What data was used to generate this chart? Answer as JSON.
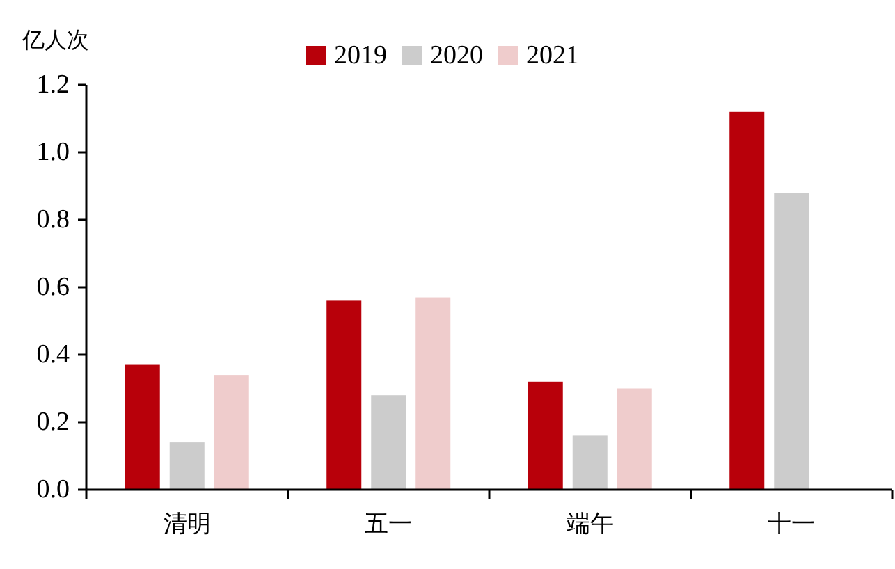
{
  "chart_data": {
    "type": "bar",
    "ylabel": "亿人次",
    "categories": [
      "清明",
      "五一",
      "端午",
      "十一"
    ],
    "series": [
      {
        "name": "2019",
        "color": "#b8000a",
        "values": [
          0.37,
          0.56,
          0.32,
          1.12
        ]
      },
      {
        "name": "2020",
        "color": "#cccccc",
        "values": [
          0.14,
          0.28,
          0.16,
          0.88
        ]
      },
      {
        "name": "2021",
        "color": "#efcccc",
        "values": [
          0.34,
          0.57,
          0.3,
          null
        ]
      }
    ],
    "ylim": [
      0,
      1.2
    ],
    "yticks": [
      {
        "value": 0,
        "label": "0.0"
      },
      {
        "value": 0.2,
        "label": "0.2"
      },
      {
        "value": 0.4,
        "label": "0.4"
      },
      {
        "value": 0.6,
        "label": "0.6"
      },
      {
        "value": 0.8,
        "label": "0.8"
      },
      {
        "value": 1,
        "label": "1.0"
      },
      {
        "value": 1.2,
        "label": "1.2"
      }
    ],
    "legend": "top"
  }
}
